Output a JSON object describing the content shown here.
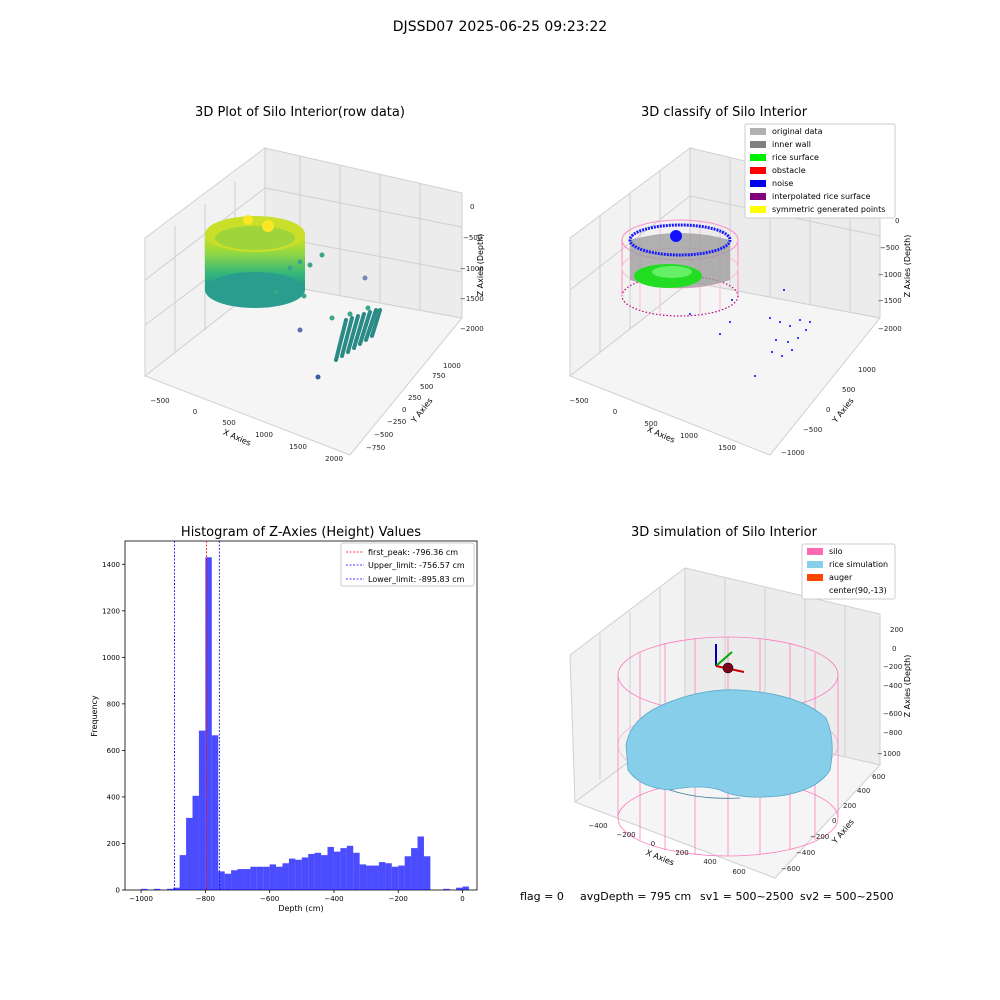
{
  "suptitle": "DJSSD07 2025-06-25 09:23:22",
  "footer": {
    "flag": "flag = 0",
    "avg_depth": "avgDepth = 795 cm",
    "sv1": "sv1 = 500~2500",
    "sv2": "sv2 = 500~2500"
  },
  "chart_data": [
    {
      "type": "scatter",
      "title": "3D Plot of Silo Interior(row data)",
      "xlabel": "X Axies",
      "ylabel": "Y Axies",
      "zlabel": "Z Axies (Depth)",
      "x_ticks": [
        "−500",
        "0",
        "500",
        "1000",
        "1500",
        "2000"
      ],
      "y_ticks": [
        "−750",
        "−500",
        "−250",
        "0",
        "250",
        "500",
        "750",
        "1000"
      ],
      "z_ticks": [
        "0",
        "−500",
        "−1000",
        "−1500",
        "−2000"
      ],
      "colormap": "viridis",
      "groups": [
        {
          "desc": "silo ring",
          "x_center": 100,
          "y_center": 0,
          "radius": 550,
          "z_range": [
            -1000,
            -600
          ]
        },
        {
          "desc": "scattered rows",
          "x_range": [
            1300,
            1900
          ],
          "y_range": [
            -300,
            300
          ],
          "z_range": [
            -2000,
            -1500
          ]
        }
      ]
    },
    {
      "type": "scatter",
      "title": "3D classify of Silo Interior",
      "xlabel": "X Axies",
      "ylabel": "Y Axies",
      "zlabel": "Z Axies (Depth)",
      "x_ticks": [
        "−500",
        "0",
        "500",
        "1000",
        "1500"
      ],
      "y_ticks": [
        "−1000",
        "−500",
        "0",
        "500",
        "1000"
      ],
      "z_ticks": [
        "0",
        "−500",
        "−1000",
        "−1500",
        "−2000"
      ],
      "legend": [
        {
          "label": "original data",
          "color": "#b0b0b0"
        },
        {
          "label": "inner wall",
          "color": "#808080"
        },
        {
          "label": "rice surface",
          "color": "#00ee00"
        },
        {
          "label": "obstacle",
          "color": "#ff0000"
        },
        {
          "label": "noise",
          "color": "#0000ee"
        },
        {
          "label": "interpolated rice surface",
          "color": "#800080"
        },
        {
          "label": "symmetric generated points",
          "color": "#ffff00"
        }
      ]
    },
    {
      "type": "bar",
      "title": "Histogram of Z-Axies (Height) Values",
      "xlabel": "Depth (cm)",
      "ylabel": "Frequency",
      "xlim": [
        -1050,
        45
      ],
      "ylim": [
        0,
        1500
      ],
      "x_ticks": [
        -1000,
        -800,
        -600,
        -400,
        -200,
        0
      ],
      "x_tick_labels": [
        "−1000",
        "−800",
        "−600",
        "−400",
        "−200",
        "0"
      ],
      "y_ticks": [
        0,
        200,
        400,
        600,
        800,
        1000,
        1200,
        1400
      ],
      "y_tick_labels": [
        "0",
        "200",
        "400",
        "600",
        "800",
        "1000",
        "1200",
        "1400"
      ],
      "bin_width": 20,
      "bin_starts": [
        -1000,
        -980,
        -960,
        -940,
        -920,
        -900,
        -880,
        -860,
        -840,
        -820,
        -800,
        -780,
        -760,
        -740,
        -720,
        -700,
        -680,
        -660,
        -640,
        -620,
        -600,
        -580,
        -560,
        -540,
        -520,
        -500,
        -480,
        -460,
        -440,
        -420,
        -400,
        -380,
        -360,
        -340,
        -320,
        -300,
        -280,
        -260,
        -240,
        -220,
        -200,
        -180,
        -160,
        -140,
        -120,
        -100,
        -80,
        -60,
        -40,
        -20,
        0
      ],
      "values": [
        5,
        0,
        5,
        0,
        5,
        10,
        150,
        310,
        405,
        685,
        1430,
        665,
        80,
        70,
        85,
        90,
        90,
        100,
        100,
        100,
        110,
        100,
        115,
        135,
        130,
        140,
        155,
        160,
        150,
        185,
        165,
        180,
        190,
        160,
        110,
        105,
        105,
        120,
        115,
        100,
        105,
        145,
        180,
        230,
        145,
        0,
        0,
        5,
        0,
        10,
        15
      ],
      "bar_color": "#0000ff",
      "bar_alpha": 0.7,
      "vlines": [
        {
          "x": -796.36,
          "color": "#ff0000",
          "label": "first_peak: -796.36 cm"
        },
        {
          "x": -756.57,
          "color": "#0000ff",
          "label": "Upper_limit: -756.57 cm"
        },
        {
          "x": -895.83,
          "color": "#0000ff",
          "label": "Lower_limit: -895.83 cm"
        }
      ],
      "legend_position": "top-right"
    },
    {
      "type": "surface",
      "title": "3D simulation of Silo Interior",
      "xlabel": "X Axies",
      "ylabel": "Y Axies",
      "zlabel": "Z Axies (Depth)",
      "x_ticks": [
        "−400",
        "−200",
        "0",
        "200",
        "400",
        "600"
      ],
      "y_ticks": [
        "−600",
        "−400",
        "−200",
        "0",
        "200",
        "400",
        "600"
      ],
      "z_ticks": [
        "200",
        "0",
        "−200",
        "−400",
        "−600",
        "−800",
        "−1000"
      ],
      "legend": [
        {
          "label": "silo",
          "color": "#ff69b4"
        },
        {
          "label": "rice simulation",
          "color": "#87ceeb"
        },
        {
          "label": "auger",
          "color": "#ff4500"
        },
        {
          "label": "center(90,-13)",
          "color": ""
        }
      ]
    }
  ]
}
